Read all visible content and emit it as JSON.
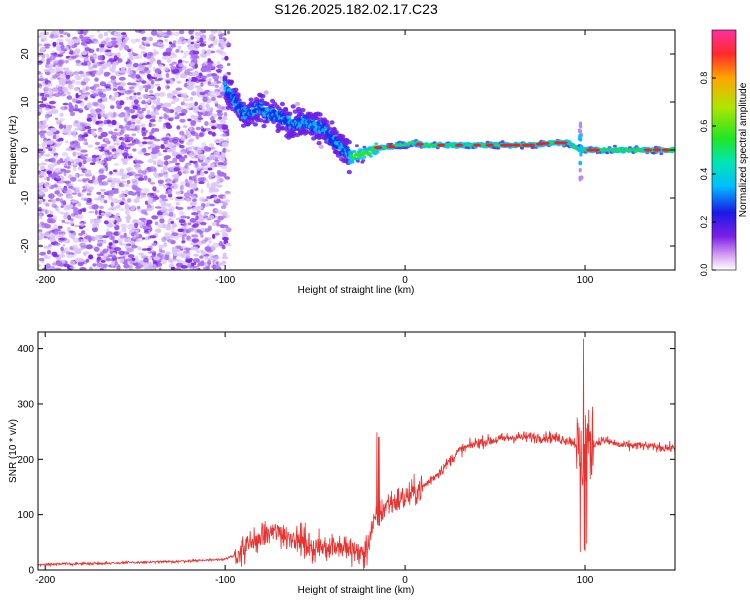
{
  "title": "S126.2025.182.02.17.C23",
  "colors": {
    "snr_line": "#e8322f",
    "scatter_strong": "#7a22e6",
    "scatter_faint": "#d9c2f7",
    "track_peak": "#e8222b"
  },
  "chart_data": [
    {
      "type": "heatmap",
      "xlabel": "Height of straight line (km)",
      "ylabel": "Frequency (Hz)",
      "xlim": [
        -204,
        150
      ],
      "ylim": [
        -25,
        25
      ],
      "xticks": [
        -200,
        -100,
        0,
        100
      ],
      "yticks": [
        -20,
        -10,
        0,
        10,
        20
      ],
      "grid": false,
      "noise_region_x": [
        -204,
        -100
      ],
      "ridge": [
        {
          "x": -100,
          "f": 13.0
        },
        {
          "x": -95,
          "f": 11.0
        },
        {
          "x": -90,
          "f": 7.5
        },
        {
          "x": -85,
          "f": 8.0
        },
        {
          "x": -80,
          "f": 9.0
        },
        {
          "x": -75,
          "f": 7.5
        },
        {
          "x": -70,
          "f": 7.0
        },
        {
          "x": -65,
          "f": 6.0
        },
        {
          "x": -60,
          "f": 5.5
        },
        {
          "x": -55,
          "f": 6.0
        },
        {
          "x": -50,
          "f": 5.0
        },
        {
          "x": -45,
          "f": 4.5
        },
        {
          "x": -40,
          "f": 2.0
        },
        {
          "x": -35,
          "f": 0.5
        },
        {
          "x": -30,
          "f": -1.5
        },
        {
          "x": -25,
          "f": -1.0
        },
        {
          "x": -20,
          "f": -0.5
        },
        {
          "x": -15,
          "f": 0.5
        },
        {
          "x": -10,
          "f": 0.5
        },
        {
          "x": -5,
          "f": 1.0
        },
        {
          "x": 0,
          "f": 1.0
        },
        {
          "x": 5,
          "f": 1.5
        },
        {
          "x": 10,
          "f": 1.0
        },
        {
          "x": 20,
          "f": 1.0
        },
        {
          "x": 30,
          "f": 1.0
        },
        {
          "x": 40,
          "f": 1.0
        },
        {
          "x": 50,
          "f": 1.0
        },
        {
          "x": 60,
          "f": 1.0
        },
        {
          "x": 70,
          "f": 1.0
        },
        {
          "x": 80,
          "f": 1.5
        },
        {
          "x": 90,
          "f": 1.5
        },
        {
          "x": 95,
          "f": 0.5
        },
        {
          "x": 100,
          "f": 0.0
        },
        {
          "x": 110,
          "f": 0.0
        },
        {
          "x": 120,
          "f": 0.0
        },
        {
          "x": 130,
          "f": 0.0
        },
        {
          "x": 140,
          "f": 0.0
        },
        {
          "x": 150,
          "f": 0.0
        }
      ],
      "colorbar": {
        "label": "Normalized spectral amplitude",
        "range": [
          0,
          1
        ],
        "ticks": [
          0.0,
          0.2,
          0.4,
          0.6,
          0.8
        ]
      }
    },
    {
      "type": "line",
      "xlabel": "Height of straight line (km)",
      "ylabel": "SNR (10 * v/v)",
      "xlim": [
        -204,
        150
      ],
      "ylim": [
        0,
        430
      ],
      "xticks": [
        -200,
        -100,
        0,
        100
      ],
      "yticks": [
        0,
        100,
        200,
        300,
        400
      ],
      "grid": false,
      "baseline": {
        "x": [
          -204,
          -170,
          -130,
          -110,
          -100,
          -95,
          -90,
          -80,
          -70,
          -60,
          -50,
          -40,
          -30,
          -22,
          -18,
          -10,
          0,
          10,
          20,
          30,
          40,
          50,
          60,
          70,
          80,
          90,
          95,
          98,
          100,
          103,
          110,
          120,
          130,
          140,
          150
        ],
        "y": [
          10,
          12,
          15,
          18,
          20,
          25,
          35,
          60,
          70,
          55,
          40,
          45,
          35,
          30,
          80,
          120,
          130,
          150,
          180,
          215,
          230,
          235,
          240,
          240,
          240,
          235,
          230,
          200,
          230,
          225,
          235,
          225,
          225,
          222,
          220
        ]
      }
    }
  ]
}
